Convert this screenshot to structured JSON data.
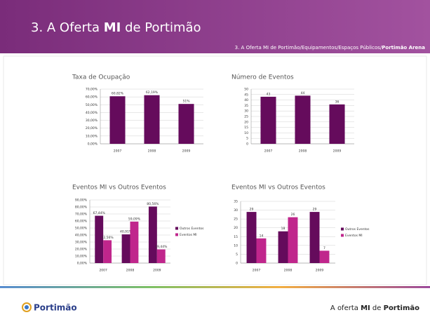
{
  "header": {
    "title": [
      "3. A Oferta ",
      "MI",
      " de Portimão"
    ],
    "breadcrumb": [
      "3. A Oferta MI de Portimão/Equipamentos/Espaços Públicos/",
      "Portimão Arena"
    ]
  },
  "footer": {
    "logo": "Portimão",
    "text": [
      "A oferta ",
      "MI",
      " de ",
      "Portimão"
    ]
  },
  "chart_data": [
    {
      "type": "bar",
      "title": "Taxa de Ocupação",
      "categories": [
        "2007",
        "2008",
        "2009"
      ],
      "values": [
        60.82,
        62.19,
        51
      ],
      "value_labels": [
        "60,82%",
        "62,19%",
        "51%"
      ],
      "color": "#650b5c",
      "ylim": [
        0,
        70
      ],
      "yticks": [
        {
          "value": 0,
          "label": "0,00%"
        },
        {
          "value": 10,
          "label": "10,00%"
        },
        {
          "value": 20,
          "label": "20,00%"
        },
        {
          "value": 30,
          "label": "30,00%"
        },
        {
          "value": 40,
          "label": "40,00%"
        },
        {
          "value": 50,
          "label": "50,00%"
        },
        {
          "value": 60,
          "label": "60,00%"
        },
        {
          "value": 70,
          "label": "70,00%"
        }
      ],
      "grid": true
    },
    {
      "type": "bar",
      "title": "Número de Eventos",
      "categories": [
        "2007",
        "2008",
        "2009"
      ],
      "values": [
        43,
        44,
        36
      ],
      "color": "#650b5c",
      "ylim": [
        0,
        50
      ],
      "yticks": [
        0,
        5,
        10,
        15,
        20,
        25,
        30,
        35,
        40,
        45,
        50
      ],
      "grid": true
    },
    {
      "type": "bar",
      "title": "Eventos MI vs Outros Eventos",
      "categories": [
        "2007",
        "2008",
        "2009"
      ],
      "series": [
        {
          "name": "Outros Eventos",
          "color": "#650b5c",
          "values": [
            67.44,
            40.91,
            80.56
          ],
          "value_labels": [
            "67,44%",
            "40,91%",
            "80,56%"
          ]
        },
        {
          "name": "Eventos MI",
          "color": "#c0268c",
          "values": [
            32.56,
            59.09,
            19.44
          ],
          "value_labels": [
            "32,56%",
            "59,09%",
            "19,44%"
          ]
        }
      ],
      "ylim": [
        0,
        90
      ],
      "yticks": [
        {
          "value": 0,
          "label": "0,00%"
        },
        {
          "value": 10,
          "label": "10,00%"
        },
        {
          "value": 20,
          "label": "20,00%"
        },
        {
          "value": 30,
          "label": "30,00%"
        },
        {
          "value": 40,
          "label": "40,00%"
        },
        {
          "value": 50,
          "label": "50,00%"
        },
        {
          "value": 60,
          "label": "60,00%"
        },
        {
          "value": 70,
          "label": "70,00%"
        },
        {
          "value": 80,
          "label": "80,00%"
        },
        {
          "value": 90,
          "label": "90,00%"
        }
      ],
      "grid": true,
      "legend": "right"
    },
    {
      "type": "bar",
      "title": "Eventos MI vs Outros Eventos",
      "categories": [
        "2007",
        "2008",
        "2009"
      ],
      "series": [
        {
          "name": "Outros Eventos",
          "color": "#650b5c",
          "values": [
            29,
            18,
            29
          ]
        },
        {
          "name": "Eventos MI",
          "color": "#c0268c",
          "values": [
            14,
            26,
            7
          ]
        }
      ],
      "ylim": [
        0,
        35
      ],
      "yticks": [
        0,
        5,
        10,
        15,
        20,
        25,
        30,
        35
      ],
      "grid": true,
      "legend": "right"
    }
  ]
}
